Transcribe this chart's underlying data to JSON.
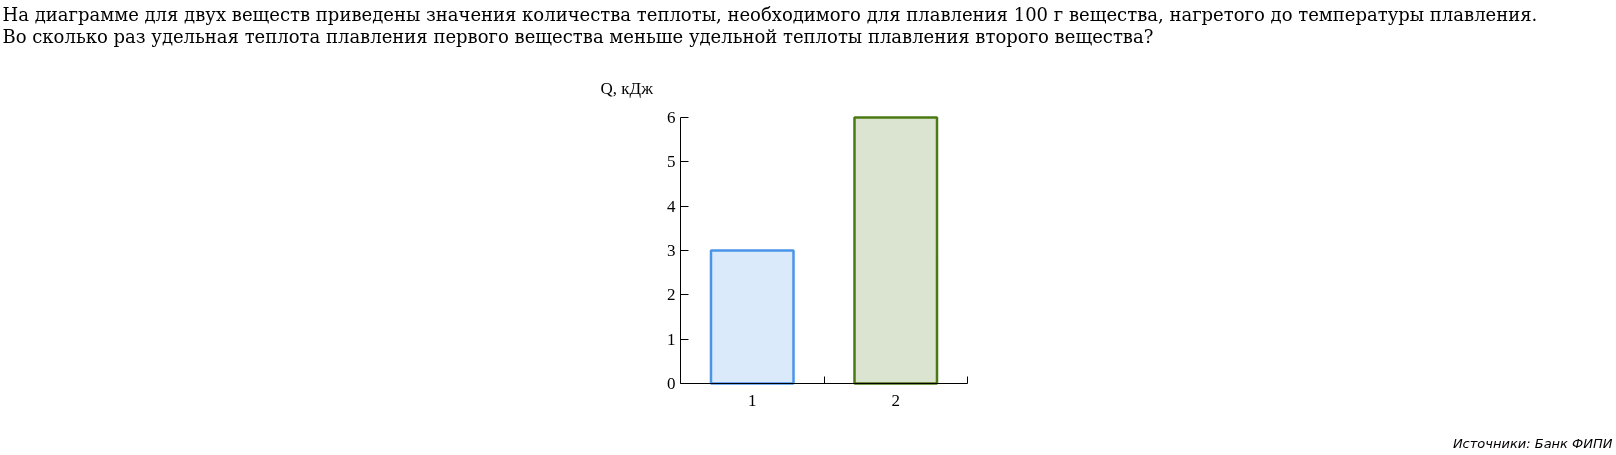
{
  "chart_data": {
    "type": "bar",
    "title": "На диаграмме для двух веществ приведены значения количества теплоты, необходимого для плавления 100 г вещества, нагретого до температуры плавления.\nВо сколько раз удельная теплота плавления первого вещества меньше удельной теплоты плавления второго вещества?",
    "ylabel": "Q, кДж",
    "categories": [
      "1",
      "2"
    ],
    "values": [
      3,
      6
    ],
    "colors": [
      "#4a94ea",
      "#4b7a12"
    ],
    "ylim": [
      0,
      6
    ],
    "yticks": [
      0,
      1,
      2,
      3,
      4,
      5,
      6
    ],
    "grid": false,
    "annotations": [
      "Источники: Банк ФИПИ"
    ]
  }
}
